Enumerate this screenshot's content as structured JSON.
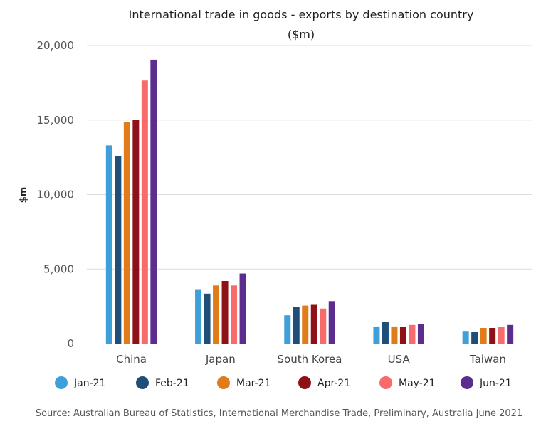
{
  "chart_data": {
    "type": "bar",
    "title": "International trade in goods - exports by destination country",
    "subtitle": "($m)",
    "ylabel": "$m",
    "xlabel": "",
    "ylim": [
      0,
      20000
    ],
    "yticks": [
      0,
      5000,
      10000,
      15000,
      20000
    ],
    "ytick_labels": [
      "0",
      "5,000",
      "10,000",
      "15,000",
      "20,000"
    ],
    "grid": true,
    "legend_position": "bottom",
    "categories": [
      "China",
      "Japan",
      "South Korea",
      "USA",
      "Taiwan"
    ],
    "series": [
      {
        "name": "Jan-21",
        "color": "#3f9fd8",
        "values": [
          13300,
          3650,
          1900,
          1150,
          850
        ]
      },
      {
        "name": "Feb-21",
        "color": "#1f4e79",
        "values": [
          12600,
          3350,
          2450,
          1450,
          800
        ]
      },
      {
        "name": "Mar-21",
        "color": "#e07c1a",
        "values": [
          14850,
          3900,
          2550,
          1150,
          1050
        ]
      },
      {
        "name": "Apr-21",
        "color": "#8f1118",
        "values": [
          15000,
          4200,
          2600,
          1100,
          1050
        ]
      },
      {
        "name": "May-21",
        "color": "#f76b6b",
        "values": [
          17650,
          3900,
          2350,
          1250,
          1100
        ]
      },
      {
        "name": "Jun-21",
        "color": "#5b2d8e",
        "values": [
          19050,
          4700,
          2850,
          1300,
          1250
        ]
      }
    ],
    "source": "Source: Australian Bureau of Statistics, International Merchandise Trade, Preliminary, Australia June 2021"
  }
}
